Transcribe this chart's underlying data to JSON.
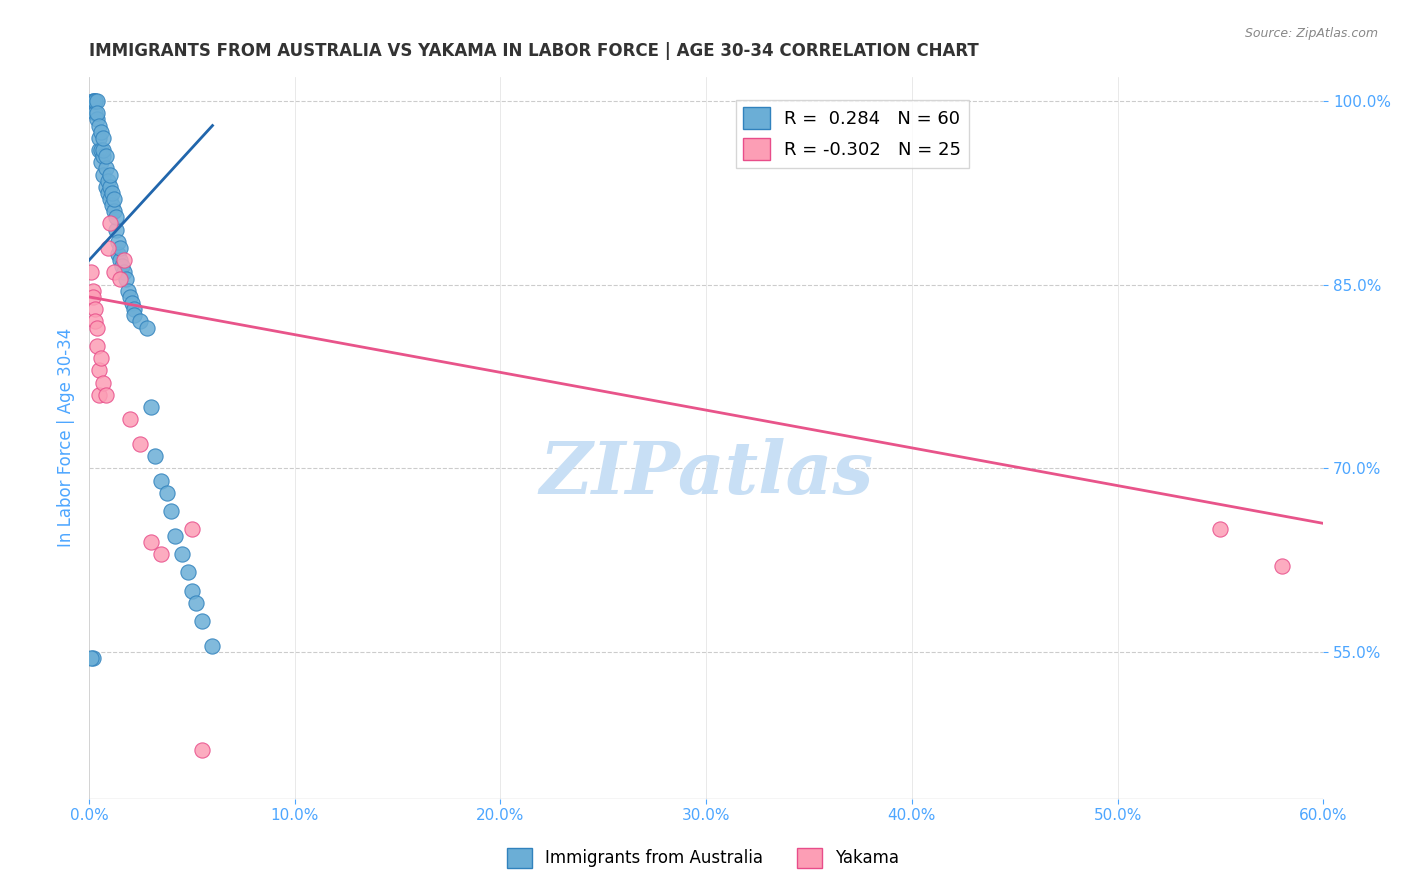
{
  "title": "IMMIGRANTS FROM AUSTRALIA VS YAKAMA IN LABOR FORCE | AGE 30-34 CORRELATION CHART",
  "source": "Source: ZipAtlas.com",
  "xlabel": "",
  "ylabel": "In Labor Force | Age 30-34",
  "xlim": [
    0.0,
    0.6
  ],
  "ylim": [
    0.43,
    1.02
  ],
  "yticks": [
    0.55,
    0.7,
    0.85,
    1.0
  ],
  "xticks": [
    0.0,
    0.1,
    0.2,
    0.3,
    0.4,
    0.5,
    0.6
  ],
  "blue_scatter_x": [
    0.002,
    0.002,
    0.003,
    0.003,
    0.003,
    0.004,
    0.004,
    0.004,
    0.005,
    0.005,
    0.005,
    0.006,
    0.006,
    0.006,
    0.007,
    0.007,
    0.007,
    0.007,
    0.008,
    0.008,
    0.008,
    0.009,
    0.009,
    0.01,
    0.01,
    0.01,
    0.011,
    0.011,
    0.012,
    0.012,
    0.013,
    0.013,
    0.014,
    0.014,
    0.015,
    0.015,
    0.016,
    0.017,
    0.018,
    0.019,
    0.02,
    0.021,
    0.022,
    0.022,
    0.025,
    0.028,
    0.03,
    0.032,
    0.035,
    0.038,
    0.04,
    0.042,
    0.045,
    0.048,
    0.05,
    0.052,
    0.055,
    0.06,
    0.002,
    0.001
  ],
  "blue_scatter_y": [
    1.0,
    1.0,
    1.0,
    0.99,
    1.0,
    1.0,
    0.985,
    0.99,
    0.96,
    0.97,
    0.98,
    0.95,
    0.96,
    0.975,
    0.94,
    0.955,
    0.96,
    0.97,
    0.93,
    0.945,
    0.955,
    0.925,
    0.935,
    0.92,
    0.93,
    0.94,
    0.915,
    0.925,
    0.91,
    0.92,
    0.895,
    0.905,
    0.875,
    0.885,
    0.87,
    0.88,
    0.865,
    0.86,
    0.855,
    0.845,
    0.84,
    0.835,
    0.83,
    0.825,
    0.82,
    0.815,
    0.75,
    0.71,
    0.69,
    0.68,
    0.665,
    0.645,
    0.63,
    0.615,
    0.6,
    0.59,
    0.575,
    0.555,
    0.545,
    0.545
  ],
  "pink_scatter_x": [
    0.001,
    0.002,
    0.002,
    0.003,
    0.003,
    0.004,
    0.004,
    0.005,
    0.005,
    0.006,
    0.007,
    0.008,
    0.009,
    0.01,
    0.012,
    0.015,
    0.017,
    0.02,
    0.025,
    0.03,
    0.035,
    0.05,
    0.055,
    0.55,
    0.58
  ],
  "pink_scatter_y": [
    0.86,
    0.845,
    0.84,
    0.83,
    0.82,
    0.815,
    0.8,
    0.78,
    0.76,
    0.79,
    0.77,
    0.76,
    0.88,
    0.9,
    0.86,
    0.855,
    0.87,
    0.74,
    0.72,
    0.64,
    0.63,
    0.65,
    0.47,
    0.65,
    0.62
  ],
  "blue_line_x": [
    0.0,
    0.06
  ],
  "blue_line_y": [
    0.87,
    0.98
  ],
  "pink_line_x": [
    0.0,
    0.6
  ],
  "pink_line_y": [
    0.84,
    0.655
  ],
  "blue_color": "#6baed6",
  "blue_edge_color": "#3182bd",
  "pink_color": "#fc9eb5",
  "pink_edge_color": "#e84d8a",
  "blue_line_color": "#2166ac",
  "pink_line_color": "#e8548a",
  "legend_R_blue": "R =  0.284",
  "legend_N_blue": "N = 60",
  "legend_R_pink": "R = -0.302",
  "legend_N_pink": "N = 25",
  "axis_label_color": "#4da6ff",
  "title_color": "#333333",
  "watermark": "ZIPatlas",
  "watermark_color": "#c8dff5"
}
